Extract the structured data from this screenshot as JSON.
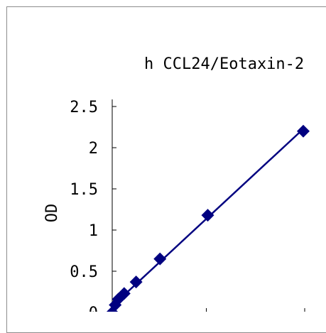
{
  "chart_data": {
    "type": "scatter",
    "title": "h CCL24/Eotaxin-2",
    "xlabel": "",
    "ylabel": "OD",
    "ylim": [
      0,
      2.5
    ],
    "yticks": [
      "0",
      "0.5",
      "1",
      "1.5",
      "2",
      "2.5"
    ],
    "xlim": [
      0,
      1000
    ],
    "grid": false,
    "legend": "none",
    "series": [
      {
        "marker": "diamond",
        "line": "fit",
        "color": "#000080",
        "x": [
          0,
          15.6,
          31.2,
          62.5,
          125,
          250,
          500,
          1000
        ],
        "y": [
          0.0,
          0.09,
          0.16,
          0.23,
          0.37,
          0.65,
          1.18,
          2.2
        ]
      }
    ]
  }
}
